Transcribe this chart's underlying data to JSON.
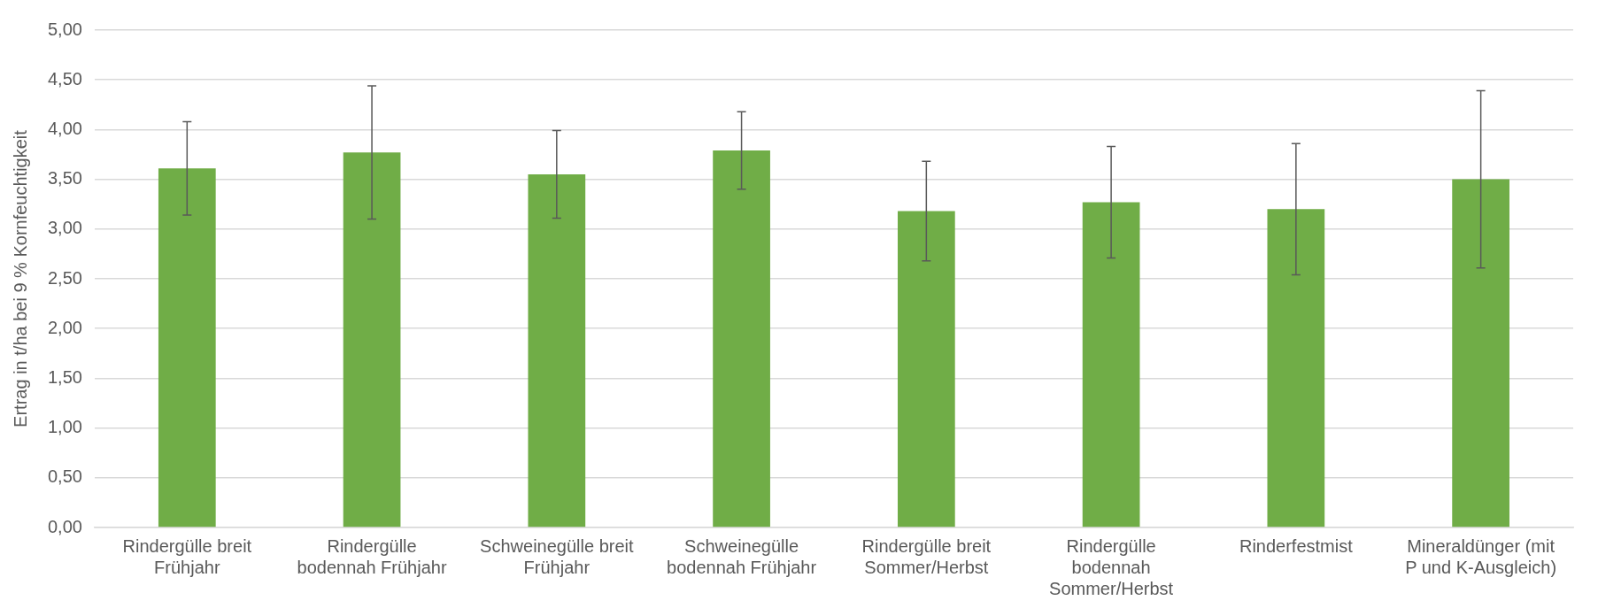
{
  "chart_data": {
    "type": "bar",
    "ylabel": "Ertrag in t/ha bei 9 % Kornfeuchtigkeit",
    "categories": [
      "Rindergülle breit Frühjahr",
      "Rindergülle bodennah Frühjahr",
      "Schweinegülle breit Frühjahr",
      "Schweinegülle bodennah Frühjahr",
      "Rindergülle breit Sommer/Herbst",
      "Rindergülle bodennah Sommer/Herbst",
      "Rinderfestmist",
      "Mineraldünger (mit P und K-Ausgleich)"
    ],
    "values": [
      3.61,
      3.77,
      3.55,
      3.79,
      3.18,
      3.27,
      3.2,
      3.5
    ],
    "errors": [
      0.47,
      0.67,
      0.44,
      0.39,
      0.5,
      0.56,
      0.66,
      0.89
    ],
    "color": "#70ad47",
    "ylim": [
      0,
      5
    ],
    "yticks": [
      {
        "value": 0,
        "label": "0,00"
      },
      {
        "value": 0.5,
        "label": "0,50"
      },
      {
        "value": 1,
        "label": "1,00"
      },
      {
        "value": 1.5,
        "label": "1,50"
      },
      {
        "value": 2,
        "label": "2,00"
      },
      {
        "value": 2.5,
        "label": "2,50"
      },
      {
        "value": 3,
        "label": "3,00"
      },
      {
        "value": 3.5,
        "label": "3,50"
      },
      {
        "value": 4,
        "label": "4,00"
      },
      {
        "value": 4.5,
        "label": "4,50"
      },
      {
        "value": 5,
        "label": "5,00"
      }
    ],
    "grid": "y",
    "legend": false
  }
}
